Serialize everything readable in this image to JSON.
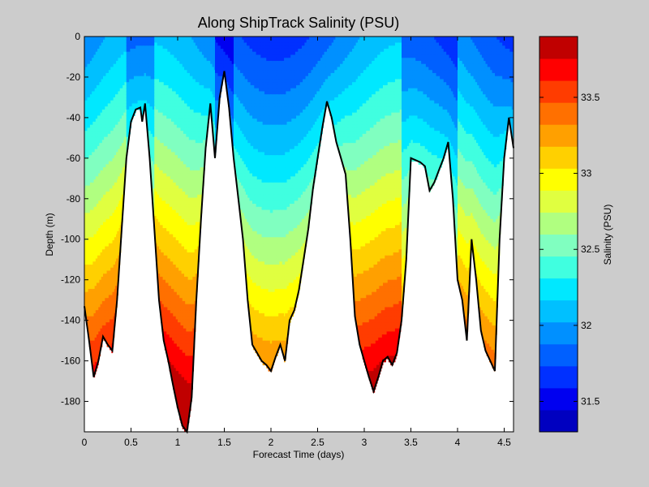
{
  "chart_data": {
    "type": "heatmap",
    "title": "Along ShipTrack Salinity (PSU)",
    "xlabel": "Forecast Time (days)",
    "ylabel": "Depth (m)",
    "xlim": [
      0,
      4.6
    ],
    "ylim": [
      -195,
      0
    ],
    "xticks": [
      0,
      0.5,
      1,
      1.5,
      2,
      2.5,
      3,
      3.5,
      4,
      4.5
    ],
    "yticks": [
      0,
      -20,
      -40,
      -60,
      -80,
      -100,
      -120,
      -140,
      -160,
      -180
    ],
    "colorbar": {
      "label": "Salinity (PSU)",
      "range": [
        31.3,
        33.9
      ],
      "ticks": [
        31.5,
        32,
        32.5,
        33,
        33.5
      ],
      "levels": [
        31.3,
        31.45,
        31.6,
        31.75,
        31.9,
        32.05,
        32.2,
        32.35,
        32.5,
        32.65,
        32.8,
        32.95,
        33.1,
        33.25,
        33.4,
        33.55,
        33.7,
        33.85
      ],
      "colors": [
        "#0000c0",
        "#0000f0",
        "#0030ff",
        "#0060ff",
        "#0090ff",
        "#00c0ff",
        "#00e8ff",
        "#40ffe0",
        "#80ffc0",
        "#b0ff80",
        "#e0ff40",
        "#ffff00",
        "#ffd000",
        "#ffa000",
        "#ff7000",
        "#ff3c00",
        "#ff0000",
        "#c00000"
      ]
    },
    "bottom_profile": {
      "x": [
        0,
        0.05,
        0.1,
        0.15,
        0.2,
        0.25,
        0.3,
        0.35,
        0.4,
        0.45,
        0.5,
        0.55,
        0.6,
        0.62,
        0.65,
        0.7,
        0.75,
        0.8,
        0.85,
        0.9,
        0.95,
        1.0,
        1.05,
        1.1,
        1.15,
        1.2,
        1.25,
        1.3,
        1.35,
        1.4,
        1.45,
        1.5,
        1.55,
        1.6,
        1.65,
        1.7,
        1.75,
        1.8,
        1.85,
        1.9,
        1.95,
        2.0,
        2.05,
        2.1,
        2.15,
        2.2,
        2.25,
        2.3,
        2.35,
        2.4,
        2.45,
        2.5,
        2.55,
        2.6,
        2.65,
        2.7,
        2.75,
        2.8,
        2.85,
        2.9,
        2.95,
        3.0,
        3.05,
        3.1,
        3.15,
        3.2,
        3.25,
        3.3,
        3.35,
        3.4,
        3.45,
        3.5,
        3.55,
        3.6,
        3.65,
        3.7,
        3.75,
        3.8,
        3.85,
        3.9,
        3.95,
        4.0,
        4.05,
        4.1,
        4.15,
        4.2,
        4.25,
        4.3,
        4.35,
        4.4,
        4.45,
        4.5,
        4.55,
        4.6
      ],
      "y": [
        -133,
        -150,
        -168,
        -160,
        -148,
        -152,
        -155,
        -130,
        -95,
        -60,
        -42,
        -36,
        -35,
        -42,
        -33,
        -60,
        -95,
        -130,
        -150,
        -160,
        -172,
        -183,
        -192,
        -195,
        -178,
        -130,
        -90,
        -55,
        -33,
        -60,
        -30,
        -17,
        -35,
        -60,
        -80,
        -100,
        -130,
        -152,
        -156,
        -160,
        -162,
        -165,
        -158,
        -152,
        -160,
        -140,
        -135,
        -125,
        -110,
        -95,
        -75,
        -60,
        -45,
        -32,
        -40,
        -52,
        -60,
        -68,
        -100,
        -138,
        -152,
        -160,
        -168,
        -175,
        -168,
        -160,
        -158,
        -162,
        -156,
        -140,
        -110,
        -60,
        -61,
        -62,
        -64,
        -76,
        -72,
        -66,
        -60,
        -52,
        -80,
        -120,
        -130,
        -150,
        -100,
        -120,
        -145,
        -155,
        -160,
        -165,
        -100,
        -60,
        -40,
        -55
      ]
    }
  }
}
